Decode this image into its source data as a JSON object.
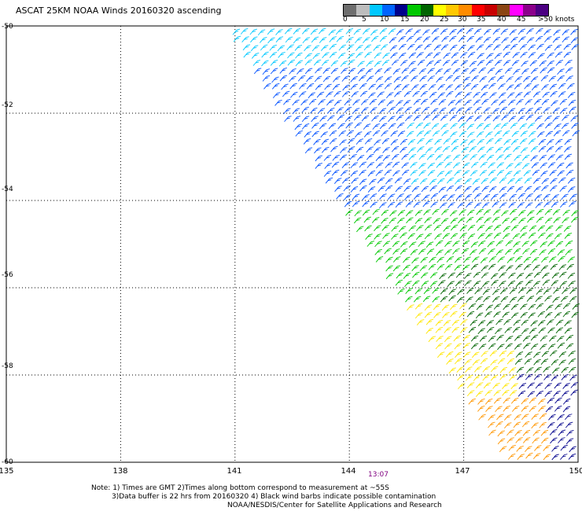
{
  "title": "ASCAT 25KM NOAA Winds 20160320 ascending",
  "legend": {
    "colors": [
      "#6e6e6e",
      "#bdbdbd",
      "#00c8ff",
      "#0064ff",
      "#00008b",
      "#00c800",
      "#006400",
      "#ffff00",
      "#ffc800",
      "#ff8c00",
      "#ff0000",
      "#c80000",
      "#8b4513",
      "#ff00ff",
      "#8b008b",
      "#4b0082"
    ],
    "labels": [
      "0",
      "5",
      "10",
      "15",
      "20",
      "25",
      "30",
      "35",
      "40",
      "45",
      ">50 knots"
    ]
  },
  "axes": {
    "lat_labels": [
      "-50",
      "-52",
      "-54",
      "-56",
      "-58",
      "-60"
    ],
    "lon_labels": [
      "135",
      "138",
      "141",
      "144",
      "147",
      "150"
    ]
  },
  "time_label": "13:07",
  "notes": [
    "Note: 1) Times are GMT 2)Times along bottom correspond to measurement at ~55S",
    "3)Data buffer is 22 hrs from 20160320 4) Black wind barbs indicate possible contamination",
    "NOAA/NESDIS/Center for Satellite Applications and Research"
  ],
  "wind_zones": [
    {
      "name": "light-blue",
      "color": "#00c8ff"
    },
    {
      "name": "blue",
      "color": "#0050ff"
    },
    {
      "name": "dark-blue",
      "color": "#00008b"
    },
    {
      "name": "green",
      "color": "#00c800"
    },
    {
      "name": "dark-green",
      "color": "#006400"
    },
    {
      "name": "yellow",
      "color": "#ffe600"
    },
    {
      "name": "orange",
      "color": "#ff9600"
    }
  ]
}
